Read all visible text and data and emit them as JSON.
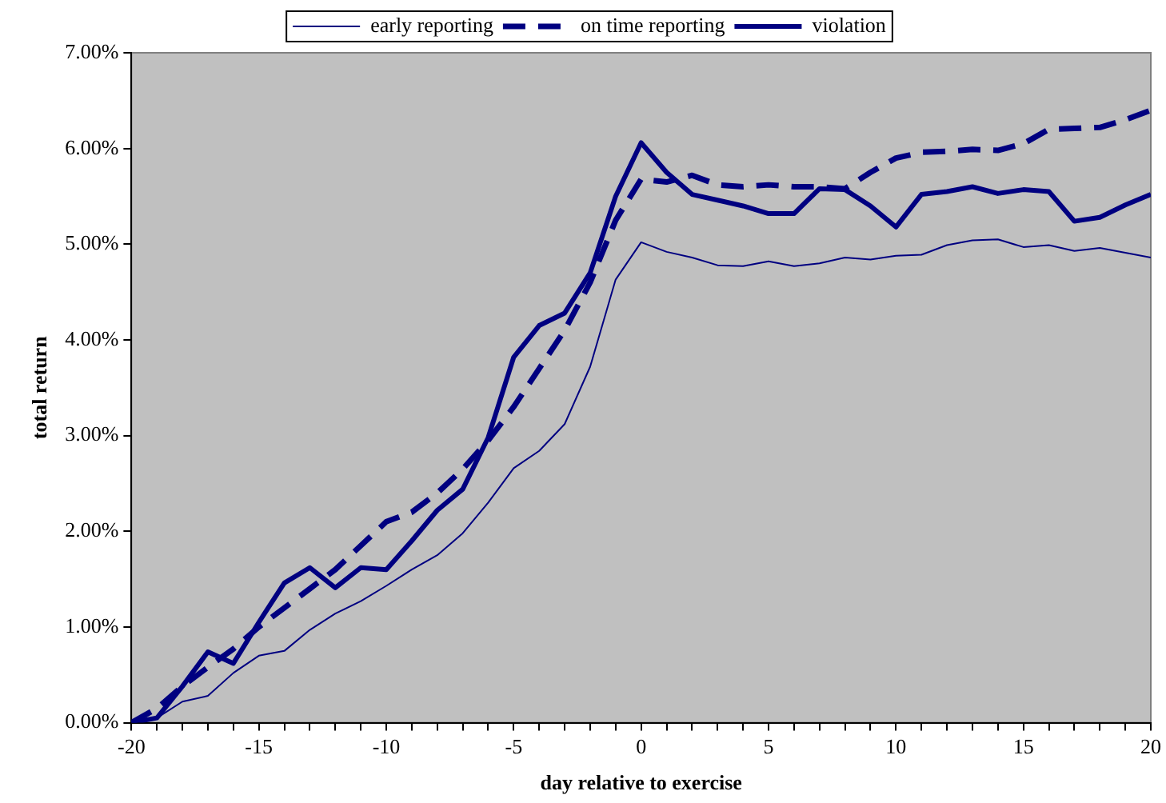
{
  "chart_data": {
    "type": "line",
    "xlabel": "day relative to exercise",
    "ylabel": "total return",
    "x": [
      -20,
      -19,
      -18,
      -17,
      -16,
      -15,
      -14,
      -13,
      -12,
      -11,
      -10,
      -9,
      -8,
      -7,
      -6,
      -5,
      -4,
      -3,
      -2,
      -1,
      0,
      1,
      2,
      3,
      4,
      5,
      6,
      7,
      8,
      9,
      10,
      11,
      12,
      13,
      14,
      15,
      16,
      17,
      18,
      19,
      20
    ],
    "series": [
      {
        "name": "early reporting",
        "color": "#000080",
        "line_style": "solid",
        "values": [
          0,
          0.05,
          0.22,
          0.28,
          0.52,
          0.7,
          0.75,
          0.97,
          1.14,
          1.27,
          1.43,
          1.6,
          1.75,
          1.98,
          2.3,
          2.66,
          2.84,
          3.12,
          3.72,
          4.63,
          5.02,
          4.92,
          4.86,
          4.78,
          4.77,
          4.82,
          4.77,
          4.8,
          4.86,
          4.84,
          4.88,
          4.89,
          4.99,
          5.04,
          5.05,
          4.97,
          4.99,
          4.93,
          4.96,
          4.91,
          4.86
        ]
      },
      {
        "name": "on time reporting",
        "color": "#000080",
        "line_style": "dashed",
        "values": [
          0,
          0.15,
          0.38,
          0.58,
          0.77,
          1.0,
          1.2,
          1.4,
          1.6,
          1.85,
          2.1,
          2.2,
          2.4,
          2.65,
          2.95,
          3.3,
          3.7,
          4.1,
          4.6,
          5.25,
          5.68,
          5.65,
          5.72,
          5.62,
          5.6,
          5.62,
          5.6,
          5.6,
          5.58,
          5.75,
          5.9,
          5.96,
          5.97,
          5.99,
          5.98,
          6.05,
          6.2,
          6.21,
          6.22,
          6.3,
          6.4
        ]
      },
      {
        "name": "violation",
        "color": "#000080",
        "line_style": "solid",
        "values": [
          0,
          0.05,
          0.38,
          0.74,
          0.62,
          1.05,
          1.46,
          1.62,
          1.41,
          1.62,
          1.6,
          1.9,
          2.22,
          2.44,
          2.98,
          3.82,
          4.15,
          4.28,
          4.7,
          5.5,
          6.06,
          5.75,
          5.52,
          5.46,
          5.4,
          5.32,
          5.32,
          5.58,
          5.57,
          5.4,
          5.18,
          5.52,
          5.55,
          5.6,
          5.53,
          5.57,
          5.55,
          5.24,
          5.28,
          5.41,
          5.52
        ]
      }
    ],
    "xlim": [
      -20,
      20
    ],
    "xticks": [
      -20,
      {
        "value": -19,
        "label": null
      },
      {
        "value": -18,
        "label": null
      },
      {
        "value": -17,
        "label": null
      },
      {
        "value": -16,
        "label": null
      },
      -15,
      {
        "value": -14,
        "label": null
      },
      {
        "value": -13,
        "label": null
      },
      {
        "value": -12,
        "label": null
      },
      {
        "value": -11,
        "label": null
      },
      -10,
      {
        "value": -9,
        "label": null
      },
      {
        "value": -8,
        "label": null
      },
      {
        "value": -7,
        "label": null
      },
      {
        "value": -6,
        "label": null
      },
      -5,
      {
        "value": -4,
        "label": null
      },
      {
        "value": -3,
        "label": null
      },
      {
        "value": -2,
        "label": null
      },
      {
        "value": -1,
        "label": null
      },
      0,
      {
        "value": 1,
        "label": null
      },
      {
        "value": 2,
        "label": null
      },
      {
        "value": 3,
        "label": null
      },
      {
        "value": 4,
        "label": null
      },
      5,
      {
        "value": 6,
        "label": null
      },
      {
        "value": 7,
        "label": null
      },
      {
        "value": 8,
        "label": null
      },
      {
        "value": 9,
        "label": null
      },
      10,
      {
        "value": 11,
        "label": null
      },
      {
        "value": 12,
        "label": null
      },
      {
        "value": 13,
        "label": null
      },
      {
        "value": 14,
        "label": null
      },
      15,
      {
        "value": 16,
        "label": null
      },
      {
        "value": 17,
        "label": null
      },
      {
        "value": 18,
        "label": null
      },
      {
        "value": 19,
        "label": null
      },
      20
    ],
    "ylim": [
      0,
      7
    ],
    "yticks": [
      {
        "value": 0,
        "label": "0.00%"
      },
      {
        "value": 1,
        "label": "1.00%"
      },
      {
        "value": 2,
        "label": "2.00%"
      },
      {
        "value": 3,
        "label": "3.00%"
      },
      {
        "value": 4,
        "label": "4.00%"
      },
      {
        "value": 5,
        "label": "5.00%"
      },
      {
        "value": 6,
        "label": "6.00%"
      },
      {
        "value": 7,
        "label": "7.00%"
      }
    ],
    "grid": false,
    "legend": "top",
    "marker": "none"
  }
}
